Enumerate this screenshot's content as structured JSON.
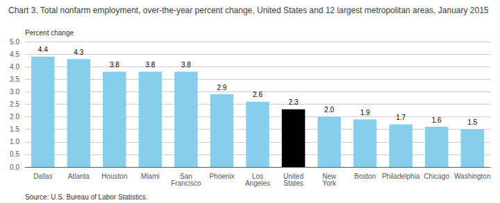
{
  "chart_data": {
    "type": "bar",
    "title": "Chart 3. Total nonfarm employment, over-the-year percent change, United States and 12 largest metropolitan areas, January 2015",
    "ylabel": "Percent change",
    "source": "Source: U.S. Bureau of Labor Statistics.",
    "categories": [
      "Dallas",
      "Atlanta",
      "Houston",
      "Miami",
      "San\nFrancisco",
      "Phoenix",
      "Los\nAngeles",
      "United\nStates",
      "New\nYork",
      "Boston",
      "Philadelphia",
      "Chicago",
      "Washington"
    ],
    "values": [
      4.4,
      4.3,
      3.8,
      3.8,
      3.8,
      2.9,
      2.6,
      2.3,
      2.0,
      1.9,
      1.7,
      1.6,
      1.5
    ],
    "value_labels": [
      "4.4",
      "4.3",
      "3.8",
      "3.8",
      "3.8",
      "2.9",
      "2.6",
      "2.3",
      "2.0",
      "1.9",
      "1.7",
      "1.6",
      "1.5"
    ],
    "colors": [
      "#87CEEB",
      "#87CEEB",
      "#87CEEB",
      "#87CEEB",
      "#87CEEB",
      "#87CEEB",
      "#87CEEB",
      "#000000",
      "#87CEEB",
      "#87CEEB",
      "#87CEEB",
      "#87CEEB",
      "#87CEEB"
    ],
    "ylim": [
      0,
      5.0
    ],
    "yticks": [
      {
        "value": 0.0,
        "label": "0.0"
      },
      0.5,
      {
        "value": 1.0,
        "label": "1.0"
      },
      1.5,
      {
        "value": 2.0,
        "label": "2.0"
      },
      2.5,
      {
        "value": 3.0,
        "label": "3.0"
      },
      3.5,
      {
        "value": 4.0,
        "label": "4.0"
      },
      4.5,
      {
        "value": 5.0,
        "label": "5.0"
      }
    ],
    "data_labels": true,
    "grid": true
  }
}
